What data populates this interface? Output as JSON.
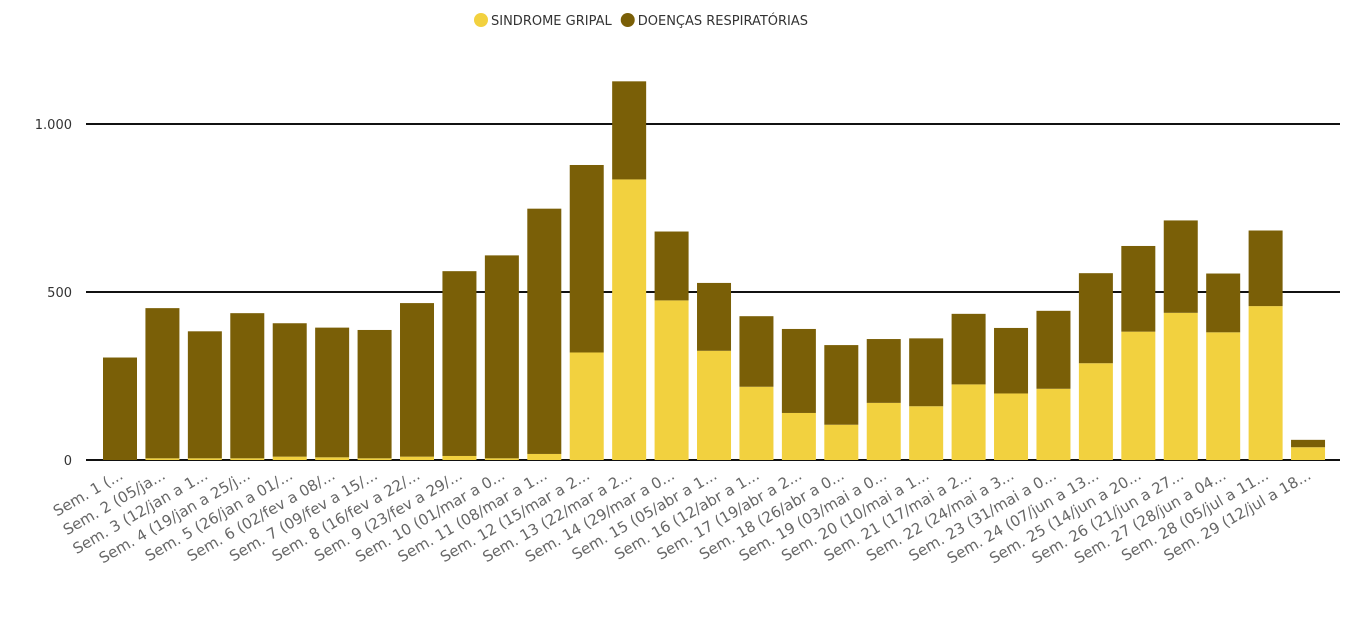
{
  "chart_data": {
    "type": "bar",
    "stacked": true,
    "legend_position": "top-center",
    "grid": true,
    "ylim": [
      0,
      1200
    ],
    "yticks": [
      0,
      500,
      1000
    ],
    "ytick_labels": [
      "0",
      "500",
      "1.000"
    ],
    "categories": [
      "Sem. 1 (...",
      "Sem. 2 (05/ja...",
      "Sem. 3 (12/jan a 1...",
      "Sem. 4 (19/jan a 25/j...",
      "Sem. 5 (26/jan a 01/...",
      "Sem. 6 (02/fev a 08/...",
      "Sem. 7 (09/fev a 15/...",
      "Sem. 8 (16/fev a 22/...",
      "Sem. 9 (23/fev a 29/...",
      "Sem. 10 (01/mar a 0...",
      "Sem. 11 (08/mar a 1...",
      "Sem. 12 (15/mar a 2...",
      "Sem. 13 (22/mar a 2...",
      "Sem. 14 (29/mar a 0...",
      "Sem. 15 (05/abr a 1...",
      "Sem. 16 (12/abr a 1...",
      "Sem. 17 (19/abr a 2...",
      "Sem. 18 (26/abr a 0...",
      "Sem. 19 (03/mai a 0...",
      "Sem. 20 (10/mai a 1...",
      "Sem. 21 (17/mai a 2...",
      "Sem. 22 (24/mai a 3...",
      "Sem. 23 (31/mai a 0...",
      "Sem. 24 (07/jun a 13...",
      "Sem. 25 (14/jun a 20...",
      "Sem. 26 (21/jun a 27...",
      "Sem. 27 (28/jun a 04...",
      "Sem. 28 (05/jul a 11...",
      "Sem. 29 (12/jul a 18..."
    ],
    "series": [
      {
        "name": "SINDROME GRIPAL",
        "color": "#F2D13F",
        "values": [
          0,
          5,
          5,
          5,
          10,
          8,
          5,
          10,
          12,
          5,
          18,
          320,
          835,
          475,
          325,
          218,
          140,
          105,
          170,
          160,
          225,
          198,
          212,
          288,
          382,
          438,
          380,
          458,
          38
        ]
      },
      {
        "name": "DOENÇAS RESPIRATÓRIAS",
        "color": "#7A5F07",
        "values": [
          305,
          447,
          378,
          432,
          397,
          386,
          382,
          457,
          550,
          604,
          730,
          558,
          292,
          205,
          202,
          210,
          250,
          237,
          190,
          202,
          210,
          195,
          232,
          268,
          255,
          275,
          175,
          225,
          22
        ]
      }
    ]
  }
}
